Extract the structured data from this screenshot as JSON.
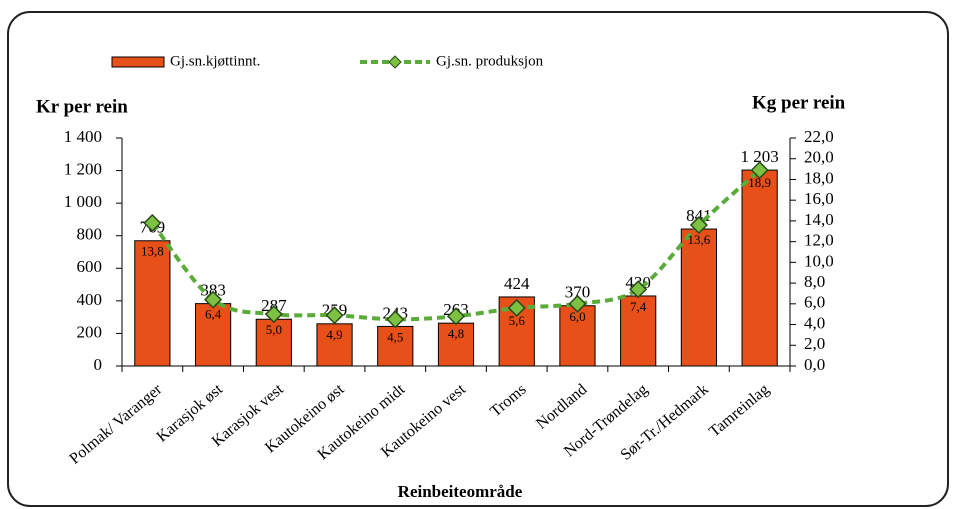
{
  "chart_data": {
    "type": "bar",
    "y_label": "Kr per rein",
    "y2_label": "Kg per rein",
    "x_label": "Reinbeiteområde",
    "categories": [
      "Polmak/ Varanger",
      "Karasjok øst",
      "Karasjok vest",
      "Kautokeino øst",
      "Kautokeino midt",
      "Kautokeino vest",
      "Troms",
      "Nordland",
      "Nord-Trøndelag",
      "Sør-Tr./Hedmark",
      "Tamreinlag"
    ],
    "series": [
      {
        "name": "Gj.sn.kjøttinnt.",
        "type": "bar",
        "color": "#e8501a",
        "values": [
          769,
          383,
          287,
          259,
          243,
          263,
          424,
          370,
          430,
          841,
          1203
        ],
        "value_labels": [
          "769",
          "383",
          "287",
          "259",
          "243",
          "263",
          "424",
          "370",
          "430",
          "841",
          "1 203"
        ]
      },
      {
        "name": "Gj.sn. produksjon",
        "type": "line",
        "axis": "y2",
        "color": "#5aab3a",
        "values": [
          13.8,
          6.4,
          5.0,
          4.9,
          4.5,
          4.8,
          5.6,
          6.0,
          7.4,
          13.6,
          18.9
        ],
        "value_labels": [
          "13,8",
          "6,4",
          "5,0",
          "4,9",
          "4,5",
          "4,8",
          "5,6",
          "6,0",
          "7,4",
          "13,6",
          "18,9"
        ]
      }
    ],
    "ylim": [
      0,
      1400
    ],
    "yticks": [
      0,
      200,
      400,
      600,
      800,
      {
        "value": 1000,
        "label": "1 000"
      },
      {
        "value": 1200,
        "label": "1 200"
      },
      {
        "value": 1400,
        "label": "1 400"
      }
    ],
    "y2lim": [
      0,
      22
    ],
    "y2ticks": [
      {
        "value": 0,
        "label": "0,0"
      },
      {
        "value": 2,
        "label": "2,0"
      },
      {
        "value": 4,
        "label": "4,0"
      },
      {
        "value": 6,
        "label": "6,0"
      },
      {
        "value": 8,
        "label": "8,0"
      },
      {
        "value": 10,
        "label": "10,0"
      },
      {
        "value": 12,
        "label": "12,0"
      },
      {
        "value": 14,
        "label": "14,0"
      },
      {
        "value": 16,
        "label": "16,0"
      },
      {
        "value": 18,
        "label": "18,0"
      },
      {
        "value": 20,
        "label": "20,0"
      },
      {
        "value": 22,
        "label": "22,0"
      }
    ],
    "legend": "top"
  }
}
